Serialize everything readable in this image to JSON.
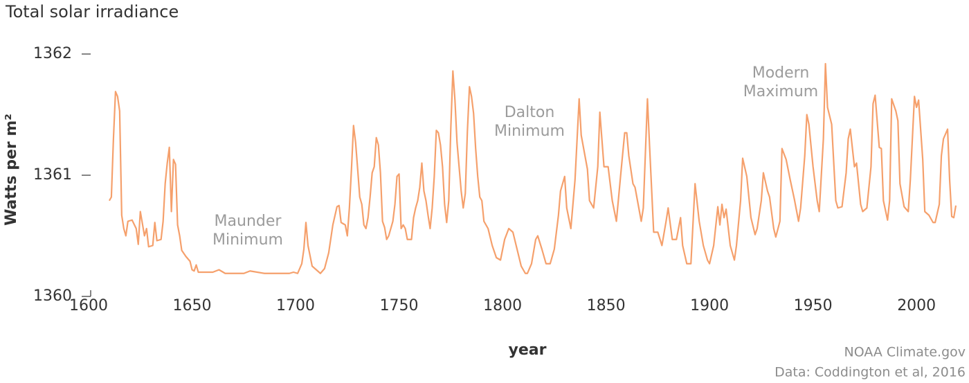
{
  "chart_data": {
    "type": "line",
    "title": "Total solar irradiance",
    "y_label": "Watts per m²",
    "x_label": "year",
    "annotations": [
      [
        "Maunder",
        "Minimum"
      ],
      [
        "Dalton",
        "Minimum"
      ],
      [
        "Modern",
        "Maximum"
      ]
    ],
    "credits": [
      "NOAA Climate.gov",
      "Data: Coddington et al, 2016"
    ],
    "color": "#f5a06c",
    "xlim": [
      1600,
      2020
    ],
    "xticks": [
      1600,
      1650,
      1700,
      1750,
      1800,
      1850,
      1900,
      1950,
      2000
    ],
    "ylim": [
      1360,
      1362
    ],
    "yticks": [
      1360,
      1361,
      1362
    ],
    "grid": false,
    "x": [
      1610,
      1611,
      1612,
      1613,
      1614,
      1615,
      1616,
      1617,
      1618,
      1619,
      1621,
      1623,
      1624,
      1625,
      1627,
      1628,
      1629,
      1631,
      1632,
      1633,
      1635,
      1636,
      1637,
      1638,
      1639,
      1640,
      1641,
      1642,
      1643,
      1644,
      1645,
      1647,
      1649,
      1650,
      1651,
      1652,
      1653,
      1660,
      1663,
      1666,
      1675,
      1678,
      1685,
      1697,
      1699,
      1701,
      1703,
      1704,
      1705,
      1706,
      1708,
      1710,
      1712,
      1714,
      1716,
      1718,
      1720,
      1721,
      1722,
      1724,
      1725,
      1726,
      1727,
      1728,
      1729,
      1730,
      1731,
      1732,
      1733,
      1734,
      1735,
      1736,
      1737,
      1738,
      1739,
      1740,
      1741,
      1742,
      1743,
      1744,
      1745,
      1747,
      1748,
      1749,
      1750,
      1751,
      1752,
      1753,
      1754,
      1756,
      1757,
      1758,
      1759,
      1760,
      1761,
      1762,
      1763,
      1764,
      1765,
      1766,
      1767,
      1768,
      1769,
      1770,
      1771,
      1772,
      1773,
      1774,
      1775,
      1776,
      1777,
      1778,
      1779,
      1780,
      1781,
      1782,
      1783,
      1784,
      1785,
      1786,
      1787,
      1788,
      1789,
      1790,
      1791,
      1793,
      1795,
      1797,
      1799,
      1801,
      1803,
      1805,
      1807,
      1809,
      1811,
      1812,
      1814,
      1816,
      1817,
      1819,
      1821,
      1823,
      1825,
      1827,
      1828,
      1830,
      1831,
      1833,
      1835,
      1837,
      1838,
      1841,
      1842,
      1844,
      1846,
      1847,
      1849,
      1851,
      1853,
      1855,
      1857,
      1859,
      1860,
      1861,
      1863,
      1864,
      1867,
      1868,
      1870,
      1871,
      1873,
      1875,
      1877,
      1879,
      1880,
      1882,
      1884,
      1886,
      1887,
      1889,
      1891,
      1893,
      1895,
      1897,
      1899,
      1900,
      1902,
      1904,
      1905,
      1906,
      1907,
      1908,
      1910,
      1912,
      1913,
      1915,
      1916,
      1918,
      1920,
      1922,
      1923,
      1925,
      1926,
      1928,
      1929,
      1931,
      1932,
      1934,
      1935,
      1937,
      1939,
      1941,
      1943,
      1944,
      1946,
      1947,
      1948,
      1950,
      1952,
      1953,
      1955,
      1956,
      1957,
      1959,
      1961,
      1962,
      1964,
      1966,
      1967,
      1968,
      1970,
      1971,
      1973,
      1974,
      1976,
      1978,
      1979,
      1980,
      1982,
      1983,
      1984,
      1986,
      1987,
      1988,
      1990,
      1991,
      1992,
      1994,
      1996,
      1997,
      1999,
      2000,
      2001,
      2003,
      2004,
      2006,
      2008,
      2009,
      2011,
      2012,
      2013,
      2015,
      2016,
      2017,
      2018,
      2019
    ],
    "values": [
      1360.79,
      1360.82,
      1361.3,
      1361.69,
      1361.65,
      1361.53,
      1360.67,
      1360.56,
      1360.5,
      1360.62,
      1360.63,
      1360.56,
      1360.43,
      1360.7,
      1360.5,
      1360.56,
      1360.41,
      1360.42,
      1360.61,
      1360.46,
      1360.47,
      1360.62,
      1360.93,
      1361.1,
      1361.23,
      1360.7,
      1361.13,
      1361.09,
      1360.59,
      1360.5,
      1360.38,
      1360.33,
      1360.29,
      1360.22,
      1360.21,
      1360.26,
      1360.2,
      1360.2,
      1360.22,
      1360.19,
      1360.19,
      1360.21,
      1360.19,
      1360.19,
      1360.2,
      1360.19,
      1360.27,
      1360.39,
      1360.61,
      1360.42,
      1360.25,
      1360.22,
      1360.19,
      1360.23,
      1360.36,
      1360.59,
      1360.74,
      1360.75,
      1360.61,
      1360.59,
      1360.5,
      1360.73,
      1361.05,
      1361.41,
      1361.27,
      1361.05,
      1360.82,
      1360.76,
      1360.59,
      1360.56,
      1360.65,
      1360.82,
      1361.02,
      1361.07,
      1361.31,
      1361.25,
      1361.02,
      1360.62,
      1360.57,
      1360.47,
      1360.5,
      1360.62,
      1360.76,
      1360.99,
      1361.01,
      1360.56,
      1360.59,
      1360.56,
      1360.47,
      1360.47,
      1360.65,
      1360.73,
      1360.79,
      1360.9,
      1361.1,
      1360.87,
      1360.79,
      1360.67,
      1360.56,
      1360.73,
      1360.99,
      1361.37,
      1361.35,
      1361.25,
      1361.07,
      1360.76,
      1360.61,
      1360.79,
      1361.39,
      1361.86,
      1361.62,
      1361.27,
      1361.07,
      1360.87,
      1360.73,
      1360.85,
      1361.36,
      1361.73,
      1361.65,
      1361.51,
      1361.22,
      1360.99,
      1360.82,
      1360.79,
      1360.62,
      1360.56,
      1360.42,
      1360.32,
      1360.3,
      1360.47,
      1360.56,
      1360.53,
      1360.39,
      1360.25,
      1360.19,
      1360.19,
      1360.27,
      1360.47,
      1360.5,
      1360.39,
      1360.27,
      1360.27,
      1360.39,
      1360.67,
      1360.87,
      1360.99,
      1360.73,
      1360.56,
      1360.96,
      1361.63,
      1361.33,
      1361.05,
      1360.79,
      1360.73,
      1361.07,
      1361.52,
      1361.07,
      1361.07,
      1360.79,
      1360.62,
      1360.99,
      1361.35,
      1361.35,
      1361.16,
      1360.93,
      1360.9,
      1360.62,
      1360.73,
      1361.63,
      1361.25,
      1360.53,
      1360.53,
      1360.42,
      1360.62,
      1360.73,
      1360.47,
      1360.47,
      1360.65,
      1360.42,
      1360.27,
      1360.27,
      1360.93,
      1360.62,
      1360.42,
      1360.3,
      1360.27,
      1360.42,
      1360.74,
      1360.59,
      1360.76,
      1360.65,
      1360.72,
      1360.42,
      1360.3,
      1360.42,
      1360.79,
      1361.14,
      1360.99,
      1360.65,
      1360.51,
      1360.56,
      1360.79,
      1361.02,
      1360.87,
      1360.82,
      1360.56,
      1360.49,
      1360.62,
      1361.22,
      1361.13,
      1360.96,
      1360.8,
      1360.62,
      1360.73,
      1361.16,
      1361.5,
      1361.42,
      1361.07,
      1360.79,
      1360.7,
      1361.3,
      1361.92,
      1361.56,
      1361.42,
      1360.79,
      1360.73,
      1360.74,
      1361.02,
      1361.3,
      1361.38,
      1361.07,
      1361.1,
      1360.76,
      1360.7,
      1360.73,
      1361.07,
      1361.59,
      1361.66,
      1361.23,
      1361.22,
      1360.79,
      1360.63,
      1360.79,
      1361.63,
      1361.53,
      1361.45,
      1360.93,
      1360.74,
      1360.7,
      1360.96,
      1361.65,
      1361.56,
      1361.62,
      1361.13,
      1360.7,
      1360.67,
      1360.61,
      1360.61,
      1360.76,
      1361.16,
      1361.3,
      1361.38,
      1360.96,
      1360.66,
      1360.65,
      1360.75
    ]
  }
}
